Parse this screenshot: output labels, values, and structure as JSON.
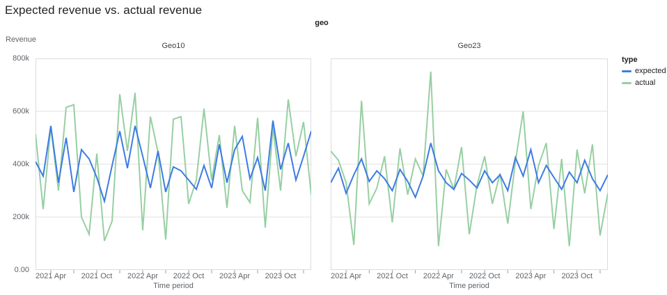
{
  "title": "Expected revenue vs. actual revenue",
  "facet_header": "geo",
  "axes": {
    "y_title": "Revenue",
    "x_title": "Time period",
    "y_tick_labels": [
      "0.00",
      "200k",
      "400k",
      "600k",
      "800k"
    ],
    "x_tick_labels": [
      "2021 Apr",
      "2021 Oct",
      "2022 Apr",
      "2022 Oct",
      "2023 Apr",
      "2023 Oct"
    ]
  },
  "legend": {
    "title": "type",
    "items": [
      {
        "label": "expected",
        "color": "#3d7be4"
      },
      {
        "label": "actual",
        "color": "#97cfa2"
      }
    ]
  },
  "colors": {
    "expected": "#3d7be4",
    "actual": "#97cfa2",
    "grid": "#e0e0e0",
    "panel_border": "#dadce0",
    "tick_mark": "#9aa0a6",
    "text_dark": "#202124",
    "text_gray": "#5f6368"
  },
  "chart_data": [
    {
      "type": "line",
      "title": "Geo10",
      "xlabel": "Time period",
      "ylabel": "Revenue",
      "ylim": [
        0,
        800000
      ],
      "y_ticks": [
        0,
        200000,
        400000,
        600000,
        800000
      ],
      "x": [
        "2021-02",
        "2021-03",
        "2021-04",
        "2021-05",
        "2021-06",
        "2021-07",
        "2021-08",
        "2021-09",
        "2021-10",
        "2021-11",
        "2021-12",
        "2022-01",
        "2022-02",
        "2022-03",
        "2022-04",
        "2022-05",
        "2022-06",
        "2022-07",
        "2022-08",
        "2022-09",
        "2022-10",
        "2022-11",
        "2022-12",
        "2023-01",
        "2023-02",
        "2023-03",
        "2023-04",
        "2023-05",
        "2023-06",
        "2023-07",
        "2023-08",
        "2023-09",
        "2023-10",
        "2023-11",
        "2023-12",
        "2024-01",
        "2024-02"
      ],
      "x_labeled_tick_indices": [
        2,
        8,
        14,
        20,
        26,
        32
      ],
      "x_minor_tick_indices": [
        2,
        5,
        8,
        11,
        14,
        17,
        20,
        23,
        26,
        29,
        32,
        35
      ],
      "series": [
        {
          "name": "expected",
          "values": [
            410000,
            355000,
            545000,
            330000,
            500000,
            295000,
            455000,
            420000,
            350000,
            260000,
            395000,
            525000,
            385000,
            545000,
            430000,
            310000,
            450000,
            295000,
            390000,
            375000,
            340000,
            305000,
            395000,
            310000,
            475000,
            330000,
            455000,
            505000,
            345000,
            425000,
            300000,
            565000,
            380000,
            480000,
            340000,
            430000,
            525000
          ]
        },
        {
          "name": "actual",
          "values": [
            515000,
            230000,
            540000,
            300000,
            615000,
            625000,
            200000,
            135000,
            440000,
            110000,
            185000,
            665000,
            450000,
            670000,
            150000,
            580000,
            445000,
            115000,
            570000,
            580000,
            250000,
            340000,
            610000,
            340000,
            510000,
            235000,
            545000,
            300000,
            255000,
            575000,
            160000,
            540000,
            300000,
            645000,
            430000,
            560000,
            285000
          ]
        }
      ]
    },
    {
      "type": "line",
      "title": "Geo23",
      "xlabel": "Time period",
      "ylabel": "Revenue",
      "ylim": [
        0,
        800000
      ],
      "y_ticks": [
        0,
        200000,
        400000,
        600000,
        800000
      ],
      "x": [
        "2021-02",
        "2021-03",
        "2021-04",
        "2021-05",
        "2021-06",
        "2021-07",
        "2021-08",
        "2021-09",
        "2021-10",
        "2021-11",
        "2021-12",
        "2022-01",
        "2022-02",
        "2022-03",
        "2022-04",
        "2022-05",
        "2022-06",
        "2022-07",
        "2022-08",
        "2022-09",
        "2022-10",
        "2022-11",
        "2022-12",
        "2023-01",
        "2023-02",
        "2023-03",
        "2023-04",
        "2023-05",
        "2023-06",
        "2023-07",
        "2023-08",
        "2023-09",
        "2023-10",
        "2023-11",
        "2023-12",
        "2024-01",
        "2024-02"
      ],
      "x_labeled_tick_indices": [
        2,
        8,
        14,
        20,
        26,
        32
      ],
      "x_minor_tick_indices": [
        2,
        5,
        8,
        11,
        14,
        17,
        20,
        23,
        26,
        29,
        32,
        35
      ],
      "series": [
        {
          "name": "expected",
          "values": [
            330000,
            385000,
            290000,
            360000,
            420000,
            335000,
            375000,
            345000,
            300000,
            380000,
            335000,
            275000,
            355000,
            480000,
            375000,
            330000,
            305000,
            365000,
            340000,
            310000,
            375000,
            330000,
            360000,
            300000,
            425000,
            355000,
            455000,
            330000,
            395000,
            350000,
            305000,
            370000,
            330000,
            415000,
            345000,
            300000,
            360000
          ]
        },
        {
          "name": "actual",
          "values": [
            450000,
            415000,
            330000,
            95000,
            640000,
            250000,
            310000,
            430000,
            180000,
            460000,
            285000,
            420000,
            355000,
            750000,
            90000,
            380000,
            305000,
            465000,
            135000,
            320000,
            430000,
            250000,
            365000,
            175000,
            410000,
            600000,
            230000,
            395000,
            480000,
            155000,
            420000,
            90000,
            455000,
            290000,
            475000,
            130000,
            290000
          ]
        }
      ]
    }
  ],
  "layout_hints": {
    "grid": "horizontal only",
    "legend_position": "right",
    "facets": "columns by geo"
  }
}
